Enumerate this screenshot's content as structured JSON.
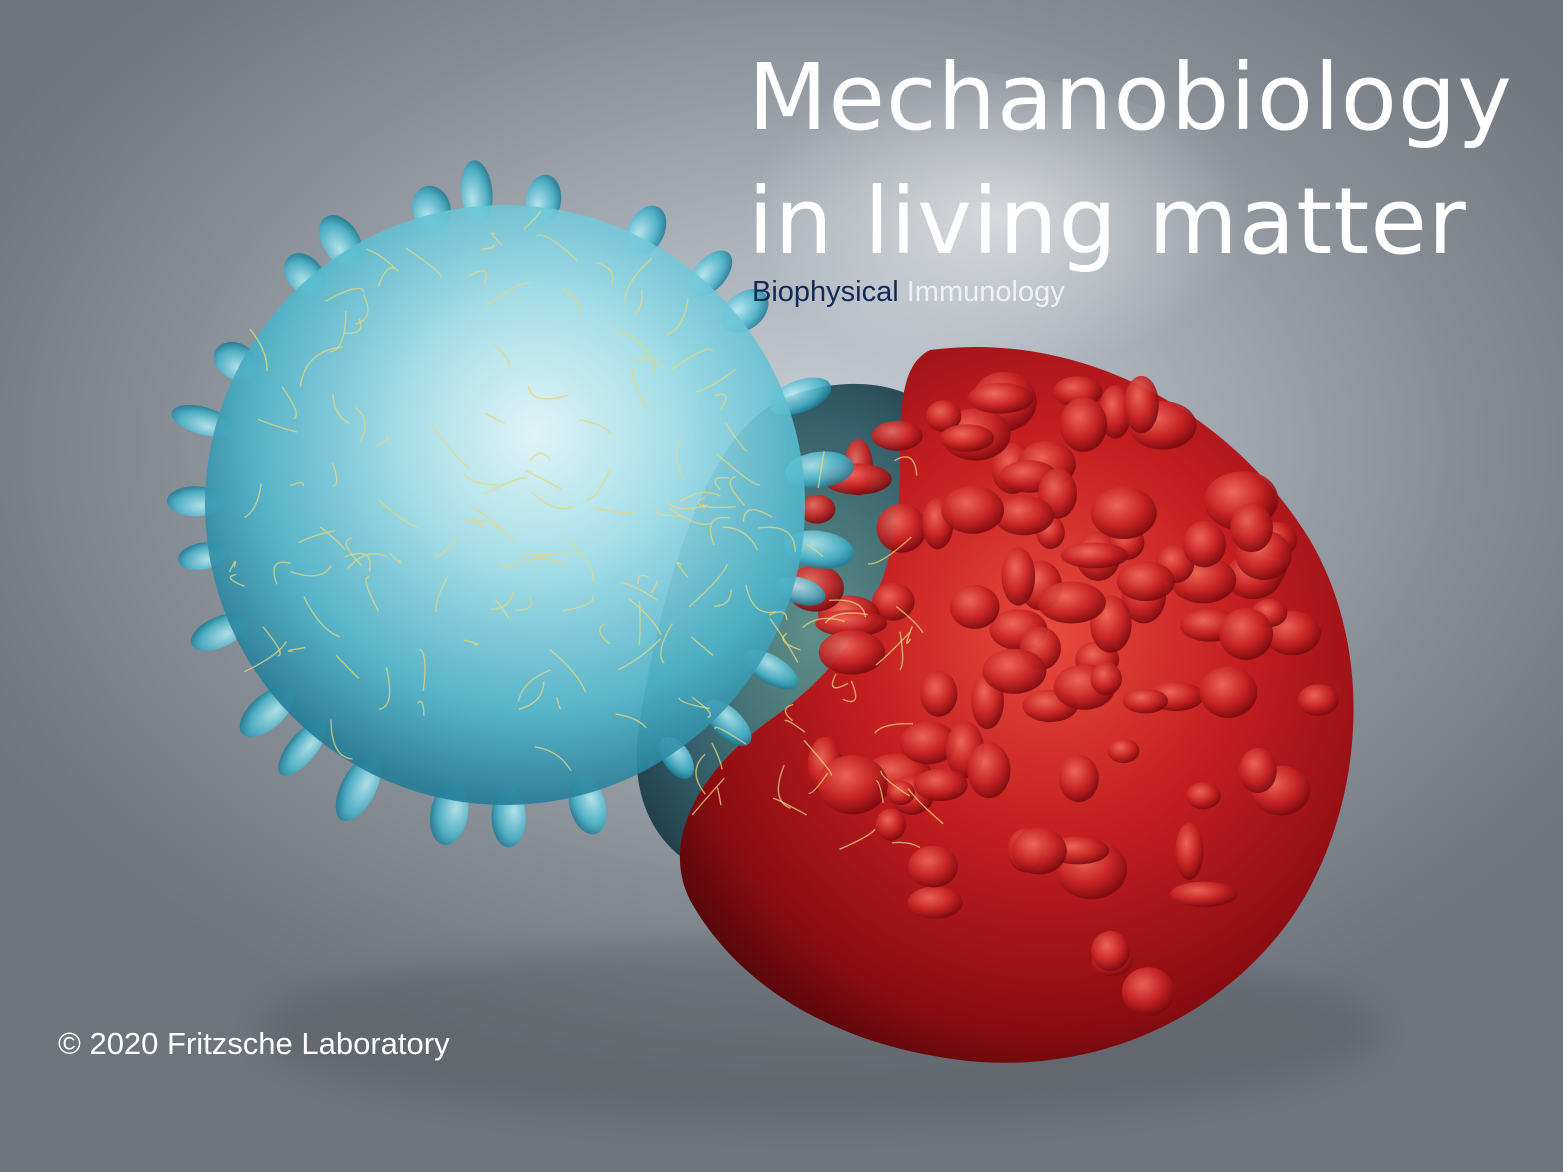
{
  "image": {
    "title_line_1": "Mechanobiology",
    "title_line_2": "in living matter",
    "subtitle_part_1": "Biophysical",
    "subtitle_part_2": "Immunology",
    "copyright": "© 2020 Fritzsche Laboratory"
  },
  "colors": {
    "title": "#ffffff",
    "subtitle_part_1": "#0f2a54",
    "subtitle_part_2": "#eef2f6",
    "blue_cell": "#5cc8dd",
    "red_cell": "#c81e20",
    "filaments": "#e8d57a"
  },
  "illustration": {
    "subject": "T-cell-interacting-with-target-cell",
    "blue_cell_label": "t-cell",
    "red_cell_label": "target-cell"
  }
}
